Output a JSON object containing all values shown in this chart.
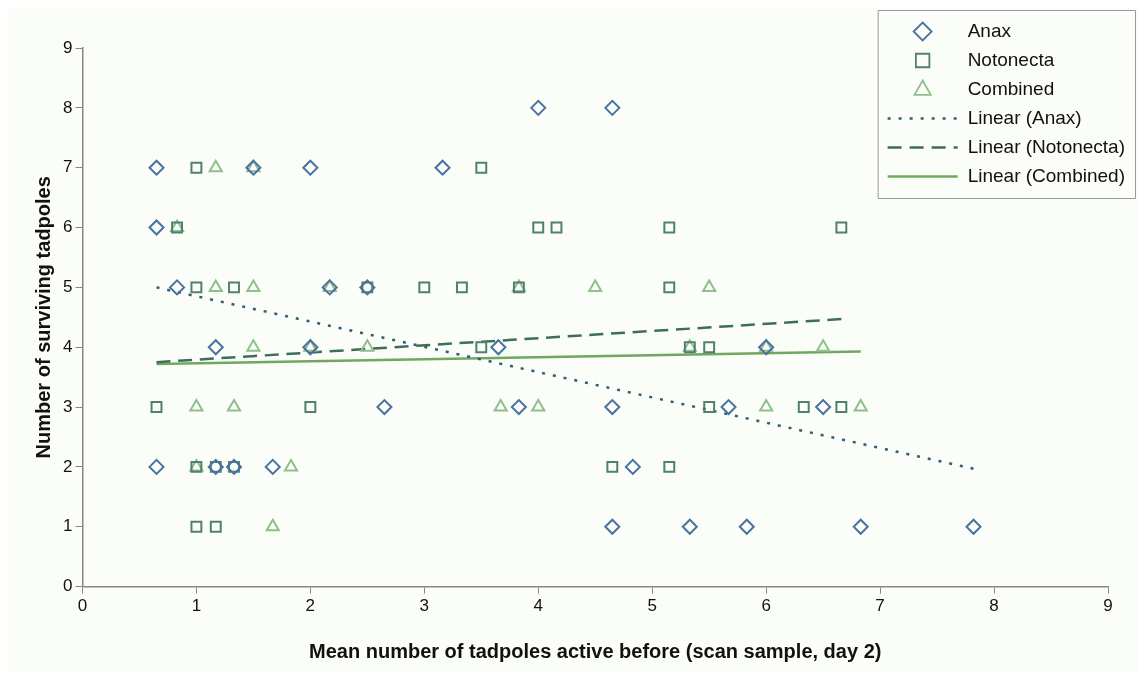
{
  "chart_data": {
    "type": "scatter",
    "xlabel": "Mean number of tadpoles active before (scan sample, day 2)",
    "ylabel": "Number of surviving tadpoles",
    "xlim": [
      0,
      9
    ],
    "xticks": [
      0,
      1,
      2,
      3,
      4,
      5,
      6,
      7,
      8,
      9
    ],
    "ylim": [
      0,
      9
    ],
    "yticks": [
      0,
      1,
      2,
      3,
      4,
      5,
      6,
      7,
      8,
      9
    ],
    "grid": false,
    "legend": "top right",
    "series": [
      {
        "name": "Anax",
        "type": "scatter",
        "marker": "diamond",
        "color": "#4a72a0",
        "x": [
          0.65,
          1.5,
          2.0,
          3.16,
          4.0,
          4.65,
          0.65,
          0.83,
          2.17,
          2.5,
          1.17,
          2.0,
          3.65,
          6.0,
          2.65,
          3.83,
          4.65,
          5.67,
          6.5,
          0.65,
          1.17,
          1.33,
          1.67,
          4.83,
          4.65,
          5.33,
          5.83,
          6.83,
          7.82
        ],
        "values": [
          7,
          7,
          7,
          7,
          8,
          8,
          6,
          5,
          5,
          5,
          4,
          4,
          4,
          4,
          3,
          3,
          3,
          3,
          3,
          2,
          2,
          2,
          2,
          2,
          1,
          1,
          1,
          1,
          1
        ]
      },
      {
        "name": "Notonecta",
        "type": "scatter",
        "marker": "square",
        "color": "#4f8070",
        "x": [
          1.0,
          3.5,
          0.83,
          4.0,
          4.16,
          5.15,
          6.66,
          1.0,
          1.33,
          2.5,
          3.0,
          3.33,
          3.83,
          5.15,
          3.5,
          5.33,
          5.5,
          0.65,
          2.0,
          5.5,
          6.33,
          6.66,
          1.0,
          1.17,
          1.33,
          4.65,
          5.15,
          1.0,
          1.17
        ],
        "values": [
          7,
          7,
          6,
          6,
          6,
          6,
          6,
          5,
          5,
          5,
          5,
          5,
          5,
          5,
          4,
          4,
          4,
          3,
          3,
          3,
          3,
          3,
          2,
          2,
          2,
          2,
          2,
          1,
          1
        ]
      },
      {
        "name": "Combined",
        "type": "scatter",
        "marker": "triangle",
        "color": "#8fbf8a",
        "x": [
          1.17,
          1.5,
          0.83,
          1.17,
          1.5,
          2.17,
          3.83,
          4.5,
          5.5,
          1.5,
          2.0,
          2.5,
          5.33,
          6.0,
          6.5,
          1.0,
          1.33,
          3.67,
          4.0,
          6.0,
          6.83,
          1.0,
          1.83,
          1.67
        ],
        "values": [
          7,
          7,
          6,
          5,
          5,
          5,
          5,
          5,
          5,
          4,
          4,
          4,
          4,
          4,
          4,
          3,
          3,
          3,
          3,
          3,
          3,
          2,
          2,
          1
        ]
      },
      {
        "name": "Linear (Anax)",
        "type": "line",
        "marker": "none",
        "line_style": "dotted",
        "color": "#2f5f7a",
        "x": [
          0.65,
          7.82
        ],
        "values": [
          5.0,
          1.97
        ]
      },
      {
        "name": "Linear (Notonecta)",
        "type": "line",
        "marker": "none",
        "line_style": "dashed",
        "color": "#3e6e5a",
        "x": [
          0.65,
          6.66
        ],
        "values": [
          3.75,
          4.47
        ]
      },
      {
        "name": "Linear (Combined)",
        "type": "line",
        "marker": "none",
        "line_style": "solid",
        "color": "#70a860",
        "x": [
          0.65,
          6.83
        ],
        "values": [
          3.72,
          3.93
        ]
      }
    ]
  }
}
